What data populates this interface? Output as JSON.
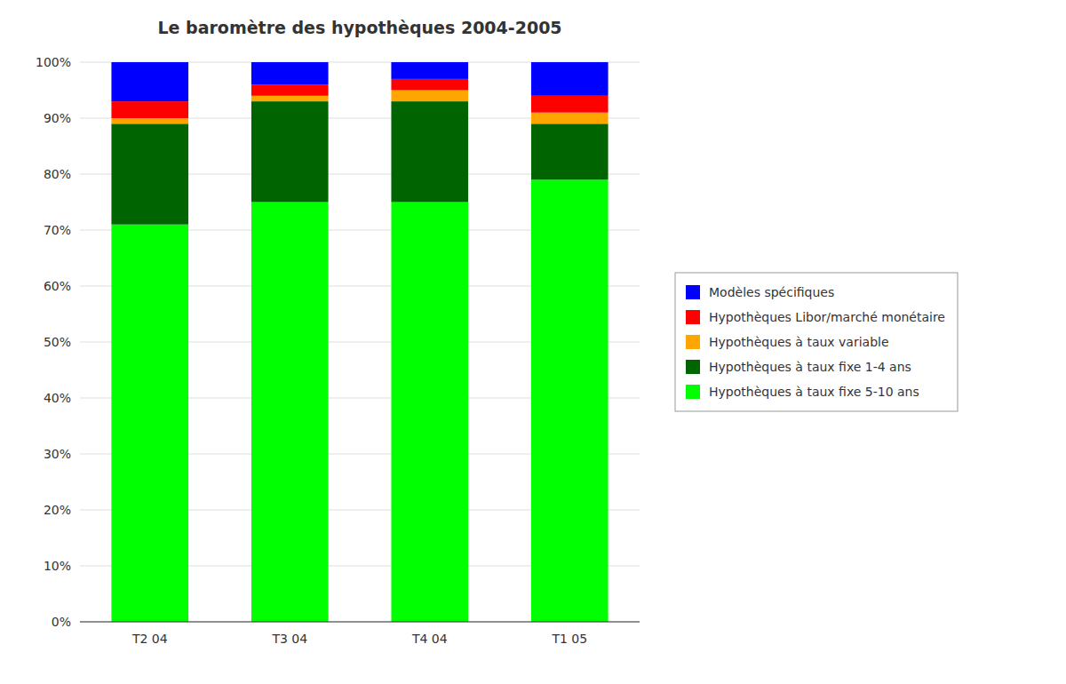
{
  "chart_data": {
    "type": "bar",
    "stacked": true,
    "title": "Le baromètre des hypothèques 2004-2005",
    "categories": [
      "T2 04",
      "T3 04",
      "T4 04",
      "T1 05"
    ],
    "series": [
      {
        "name": "Hypothèques à taux fixe 5-10 ans",
        "color": "#00FF00",
        "values": [
          71,
          75,
          75,
          79
        ]
      },
      {
        "name": "Hypothèques à taux fixe 1-4 ans",
        "color": "#006400",
        "values": [
          18,
          18,
          18,
          10
        ]
      },
      {
        "name": "Hypothèques à taux variable",
        "color": "#FFA500",
        "values": [
          1,
          1,
          2,
          2
        ]
      },
      {
        "name": "Hypothèques Libor/marché monétaire",
        "color": "#FF0000",
        "values": [
          3,
          2,
          2,
          3
        ]
      },
      {
        "name": "Modèles spécifiques",
        "color": "#0000FF",
        "values": [
          7,
          4,
          3,
          6
        ]
      }
    ],
    "ylim": [
      0,
      100
    ],
    "yticks": [
      {
        "value": 0,
        "label": "0%"
      },
      {
        "value": 10,
        "label": "10%"
      },
      {
        "value": 20,
        "label": "20%"
      },
      {
        "value": 30,
        "label": "30%"
      },
      {
        "value": 40,
        "label": "40%"
      },
      {
        "value": 50,
        "label": "50%"
      },
      {
        "value": 60,
        "label": "60%"
      },
      {
        "value": 70,
        "label": "70%"
      },
      {
        "value": 80,
        "label": "80%"
      },
      {
        "value": 90,
        "label": "90%"
      },
      {
        "value": 100,
        "label": "100%"
      }
    ],
    "grid": true,
    "legend": "right"
  }
}
